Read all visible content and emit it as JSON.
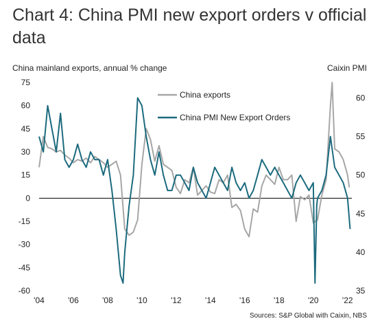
{
  "chart_data": {
    "type": "line",
    "title": "Chart 4: China PMI new export orders v official data",
    "ylabel": "China mainland exports, annual % change",
    "y2label": "Caixin PMI",
    "source": "Sources: S&P Global with Caixin, NBS",
    "ylim": [
      -60,
      75
    ],
    "y2lim": [
      35,
      62
    ],
    "yticks": [
      "75",
      "60",
      "45",
      "30",
      "15",
      "0",
      "-15",
      "-30",
      "-45",
      "-60"
    ],
    "y2ticks": [
      "60",
      "55",
      "50",
      "45",
      "40",
      "35"
    ],
    "xlim": [
      2004,
      2022.25
    ],
    "xticks": [
      "'04",
      "'06",
      "'08",
      "'10",
      "'12",
      "'14",
      "'16",
      "'18",
      "'20",
      "'22"
    ],
    "legend_position": "top-center",
    "colors": {
      "exports": "#a6a6a6",
      "pmi": "#1b6a7d",
      "zero_line": "#000000"
    },
    "series": [
      {
        "name": "China exports",
        "axis": "left",
        "x": [
          2004.0,
          2004.25,
          2004.5,
          2004.75,
          2005.0,
          2005.25,
          2005.5,
          2005.75,
          2006.0,
          2006.25,
          2006.5,
          2006.75,
          2007.0,
          2007.25,
          2007.5,
          2007.75,
          2008.0,
          2008.25,
          2008.5,
          2008.75,
          2009.0,
          2009.25,
          2009.5,
          2009.75,
          2010.0,
          2010.25,
          2010.5,
          2010.75,
          2011.0,
          2011.25,
          2011.5,
          2011.75,
          2012.0,
          2012.25,
          2012.5,
          2012.75,
          2013.0,
          2013.25,
          2013.5,
          2013.75,
          2014.0,
          2014.25,
          2014.5,
          2014.75,
          2015.0,
          2015.25,
          2015.5,
          2015.75,
          2016.0,
          2016.25,
          2016.5,
          2016.75,
          2017.0,
          2017.25,
          2017.5,
          2017.75,
          2018.0,
          2018.25,
          2018.5,
          2018.75,
          2019.0,
          2019.25,
          2019.5,
          2019.75,
          2020.0,
          2020.25,
          2020.5,
          2020.75,
          2021.0,
          2021.1,
          2021.25,
          2021.5,
          2021.75,
          2022.0,
          2022.1
        ],
        "values": [
          20,
          40,
          33,
          32,
          30,
          31,
          28,
          26,
          23,
          25,
          24,
          26,
          23,
          27,
          25,
          23,
          20,
          22,
          24,
          15,
          -20,
          -24,
          -22,
          -14,
          22,
          45,
          38,
          24,
          34,
          22,
          20,
          18,
          7,
          3,
          12,
          10,
          20,
          2,
          5,
          8,
          4,
          3,
          12,
          10,
          15,
          -6,
          -4,
          -8,
          -20,
          -25,
          -7,
          -9,
          8,
          15,
          12,
          9,
          20,
          12,
          12,
          15,
          -15,
          1,
          -1,
          2,
          -16,
          -14,
          2,
          12,
          60,
          75,
          32,
          30,
          25,
          15,
          7
        ]
      },
      {
        "name": "China PMI New Export Orders",
        "axis": "right",
        "x": [
          2004.0,
          2004.25,
          2004.5,
          2004.75,
          2005.0,
          2005.25,
          2005.5,
          2005.75,
          2006.0,
          2006.25,
          2006.5,
          2006.75,
          2007.0,
          2007.25,
          2007.5,
          2007.75,
          2008.0,
          2008.25,
          2008.5,
          2008.75,
          2008.9,
          2009.0,
          2009.25,
          2009.5,
          2009.75,
          2010.0,
          2010.25,
          2010.5,
          2010.75,
          2011.0,
          2011.25,
          2011.5,
          2011.75,
          2012.0,
          2012.25,
          2012.5,
          2012.75,
          2013.0,
          2013.25,
          2013.5,
          2013.75,
          2014.0,
          2014.25,
          2014.5,
          2014.75,
          2015.0,
          2015.25,
          2015.5,
          2015.75,
          2016.0,
          2016.25,
          2016.5,
          2016.75,
          2017.0,
          2017.25,
          2017.5,
          2017.75,
          2018.0,
          2018.25,
          2018.5,
          2018.75,
          2019.0,
          2019.25,
          2019.5,
          2019.75,
          2020.0,
          2020.1,
          2020.2,
          2020.25,
          2020.5,
          2020.75,
          2021.0,
          2021.25,
          2021.5,
          2021.75,
          2022.0,
          2022.15
        ],
        "values": [
          55,
          53,
          59,
          56,
          53,
          58,
          52,
          51,
          52,
          54,
          52,
          51,
          53,
          52,
          52,
          50,
          52,
          48,
          43,
          37,
          36,
          40,
          46,
          50,
          60,
          59,
          55,
          52,
          50,
          53,
          50,
          48,
          48,
          50,
          50,
          49,
          48,
          51,
          49,
          48,
          47,
          49,
          51,
          50,
          49,
          48,
          51,
          49,
          48,
          49,
          47,
          48,
          50,
          52,
          51,
          50,
          51,
          50,
          49,
          48,
          47,
          49,
          50,
          49,
          48,
          49,
          36,
          46,
          47,
          48,
          50,
          55,
          51,
          50,
          49,
          47,
          43
        ]
      }
    ]
  }
}
